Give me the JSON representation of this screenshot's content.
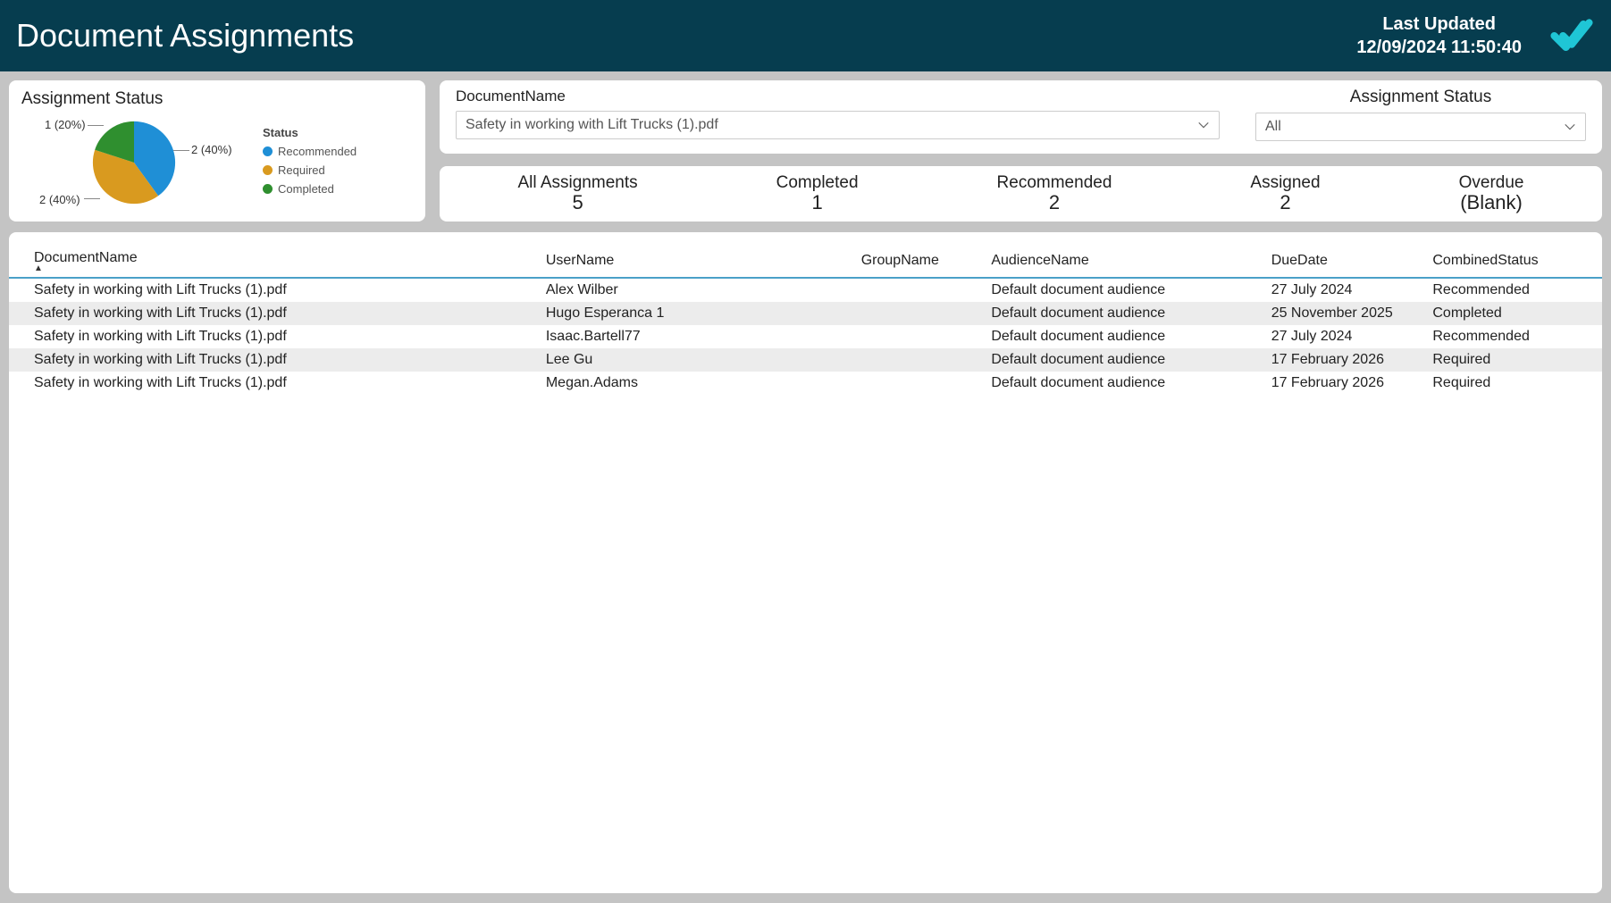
{
  "header": {
    "title": "Document Assignments",
    "last_updated_label": "Last Updated",
    "last_updated_value": "12/09/2024 11:50:40",
    "logo_color": "#1fc6d6"
  },
  "status_chart": {
    "title": "Assignment Status",
    "type": "pie",
    "legend_title": "Status",
    "slices": [
      {
        "label": "Recommended",
        "value": 2,
        "percent": 40,
        "color": "#1f8fd6",
        "callout": "2 (40%)"
      },
      {
        "label": "Required",
        "value": 2,
        "percent": 40,
        "color": "#d99a1f",
        "callout": "2 (40%)"
      },
      {
        "label": "Completed",
        "value": 1,
        "percent": 20,
        "color": "#2f8f2f",
        "callout": "1 (20%)"
      }
    ],
    "background_color": "#ffffff"
  },
  "filters": {
    "document_name_label": "DocumentName",
    "document_name_value": "Safety in working with Lift Trucks (1).pdf",
    "status_label": "Assignment Status",
    "status_value": "All"
  },
  "metrics": [
    {
      "label": "All Assignments",
      "value": "5"
    },
    {
      "label": "Completed",
      "value": "1"
    },
    {
      "label": "Recommended",
      "value": "2"
    },
    {
      "label": "Assigned",
      "value": "2"
    },
    {
      "label": "Overdue",
      "value": "(Blank)"
    }
  ],
  "table": {
    "columns": [
      "DocumentName",
      "UserName",
      "GroupName",
      "AudienceName",
      "DueDate",
      "CombinedStatus"
    ],
    "sort_column": "DocumentName",
    "sort_dir": "asc",
    "rows": [
      {
        "doc": "Safety in working with Lift Trucks (1).pdf",
        "user": "Alex Wilber",
        "group": "",
        "audience": "Default document audience",
        "due": "27 July 2024",
        "status": "Recommended"
      },
      {
        "doc": "Safety in working with Lift Trucks (1).pdf",
        "user": "Hugo Esperanca 1",
        "group": "",
        "audience": "Default document audience",
        "due": "25 November 2025",
        "status": "Completed"
      },
      {
        "doc": "Safety in working with Lift Trucks (1).pdf",
        "user": "Isaac.Bartell77",
        "group": "",
        "audience": "Default document audience",
        "due": "27 July 2024",
        "status": "Recommended"
      },
      {
        "doc": "Safety in working with Lift Trucks (1).pdf",
        "user": "Lee Gu",
        "group": "",
        "audience": "Default document audience",
        "due": "17 February 2026",
        "status": "Required"
      },
      {
        "doc": "Safety in working with Lift Trucks (1).pdf",
        "user": "Megan.Adams",
        "group": "",
        "audience": "Default document audience",
        "due": "17 February 2026",
        "status": "Required"
      }
    ],
    "row_alt_bg": "#ececec",
    "header_underline_color": "#4aa0c8"
  }
}
